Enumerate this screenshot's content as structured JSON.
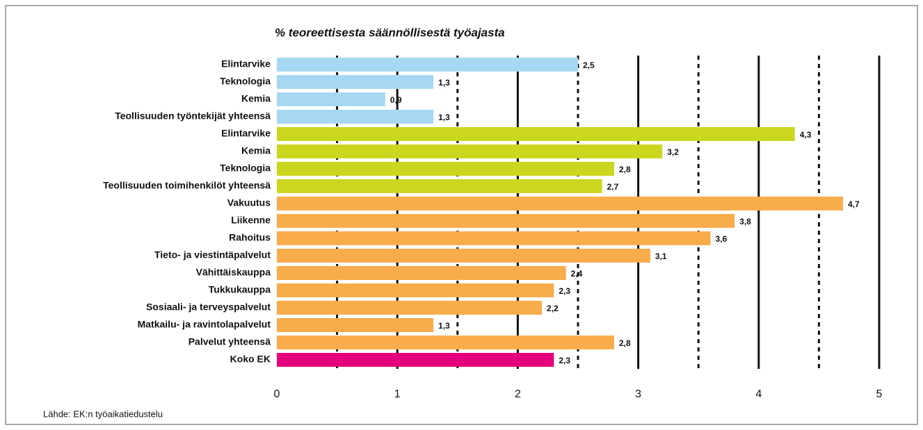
{
  "chart_data": {
    "type": "barh",
    "title": "% teoreettisesta säännöllisestä työajasta",
    "source": "Lähde: EK:n työaikatiedustelu",
    "categories": [
      "Elintarvike",
      "Teknologia",
      "Kemia",
      "Teollisuuden työntekijät yhteensä",
      "Elintarvike",
      "Kemia",
      "Teknologia",
      "Teollisuuden toimihenkilöt yhteensä",
      "Vakuutus",
      "Liikenne",
      "Rahoitus",
      "Tieto- ja viestintäpalvelut",
      "Vähittäiskauppa",
      "Tukkukauppa",
      "Sosiaali- ja terveyspalvelut",
      "Matkailu- ja ravintolapalvelut",
      "Palvelut yhteensä",
      "Koko EK"
    ],
    "values": [
      2.5,
      1.3,
      0.9,
      1.3,
      4.3,
      3.2,
      2.8,
      2.7,
      4.7,
      3.8,
      3.6,
      3.1,
      2.4,
      2.3,
      2.2,
      1.3,
      2.8,
      2.3
    ],
    "value_labels": [
      "2,5",
      "1,3",
      "0,9",
      "1,3",
      "4,3",
      "3,2",
      "2,8",
      "2,7",
      "4,7",
      "3,8",
      "3,6",
      "3,1",
      "2,4",
      "2,3",
      "2,2",
      "1,3",
      "2,8",
      "2,3"
    ],
    "colors": [
      "#a6d8f3",
      "#a6d8f3",
      "#a6d8f3",
      "#a6d8f3",
      "#cbd61f",
      "#cbd61f",
      "#cbd61f",
      "#cbd61f",
      "#f9ac4c",
      "#f9ac4c",
      "#f9ac4c",
      "#f9ac4c",
      "#f9ac4c",
      "#f9ac4c",
      "#f9ac4c",
      "#f9ac4c",
      "#f9ac4c",
      "#e5007d"
    ],
    "xlim": [
      0,
      5
    ],
    "xticks": [
      0,
      1,
      2,
      3,
      4,
      5
    ],
    "minor_xticks": [
      0.5,
      1.5,
      2.5,
      3.5,
      4.5
    ],
    "grid": true
  }
}
